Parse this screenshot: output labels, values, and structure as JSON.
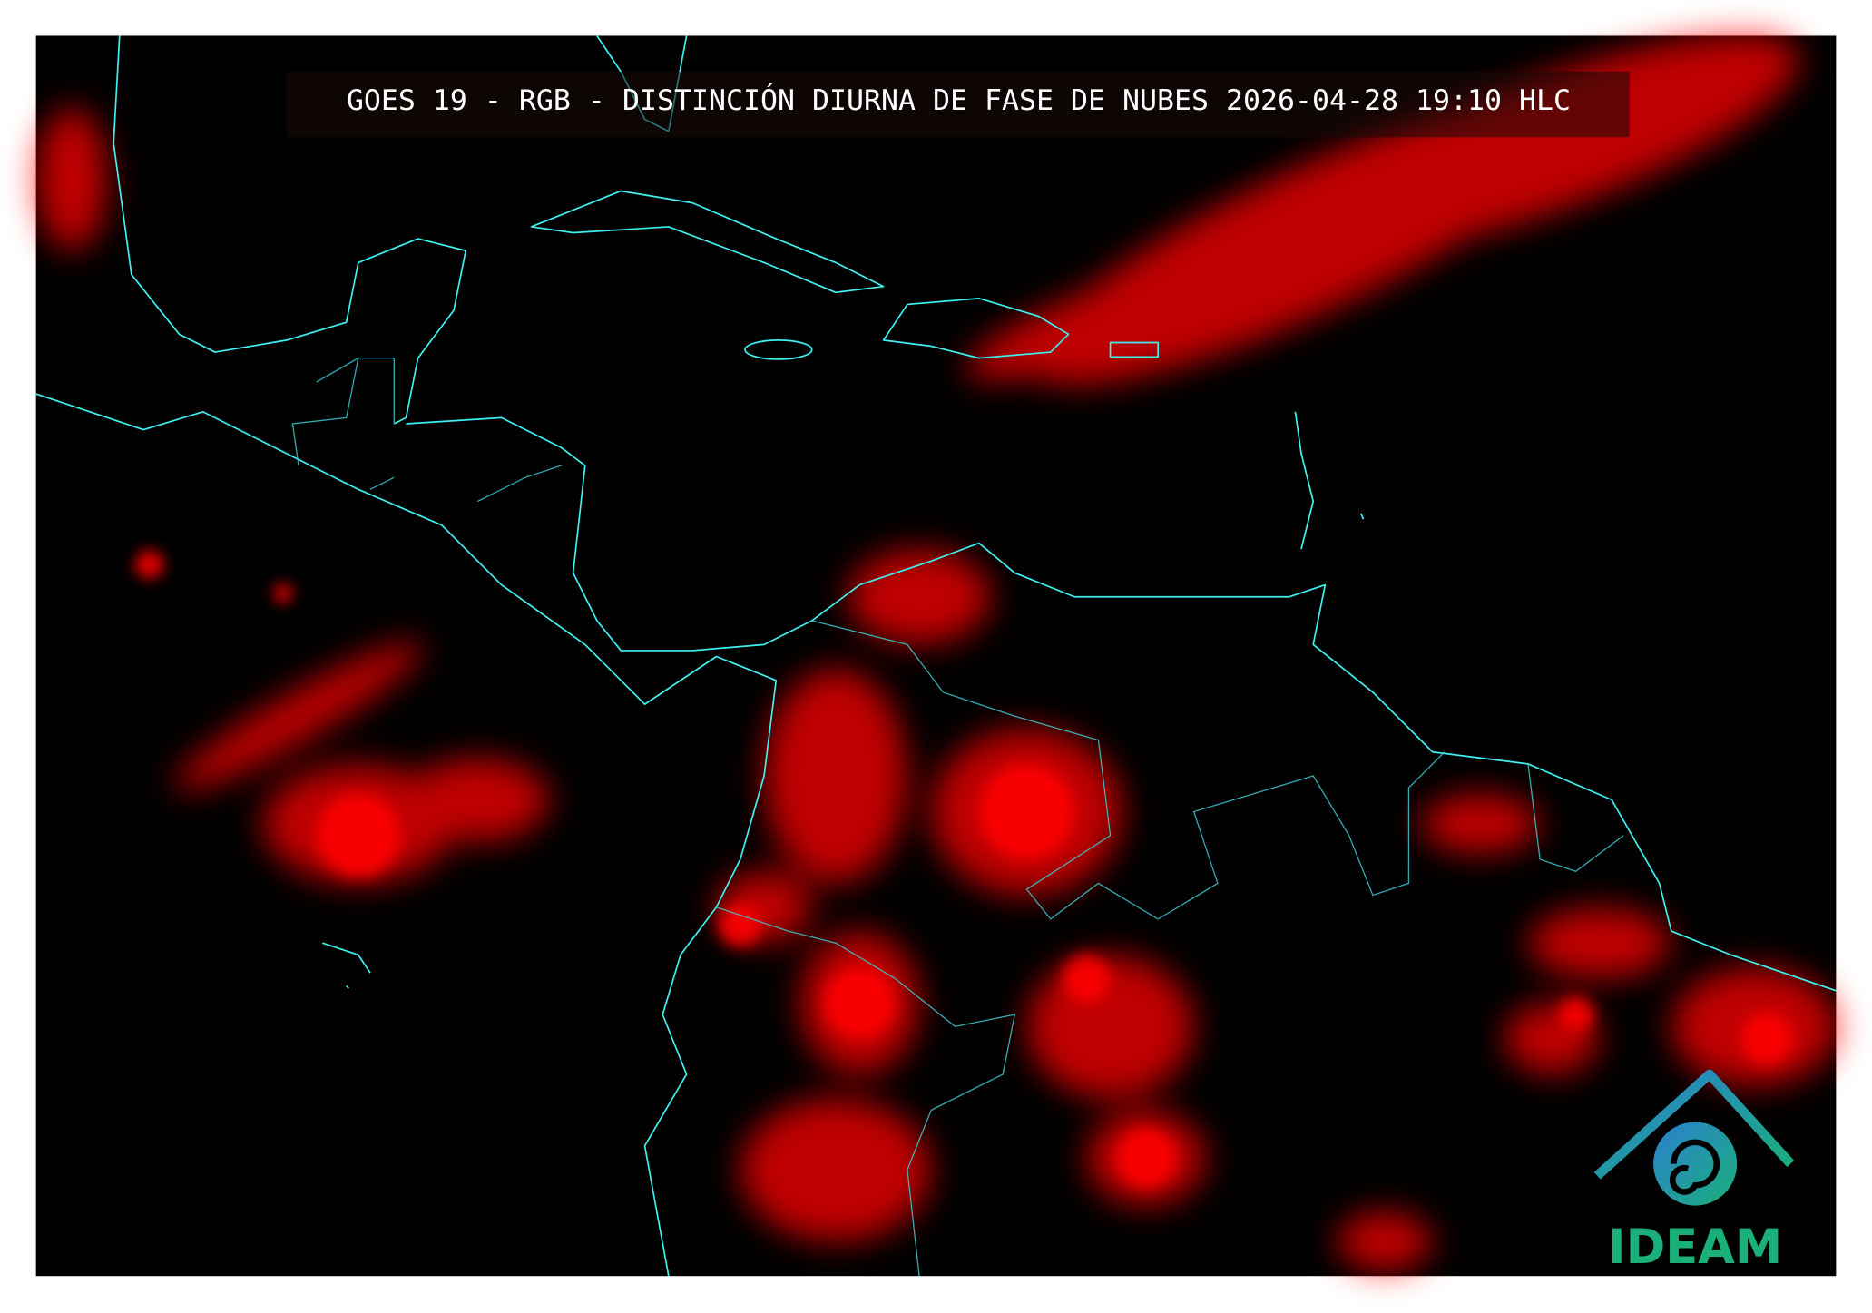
{
  "header": {
    "title": "GOES 19 - RGB - DISTINCIÓN DIURNA DE FASE DE NUBES 2026-04-28 19:10 HLC"
  },
  "logo": {
    "label": "IDEAM"
  }
}
